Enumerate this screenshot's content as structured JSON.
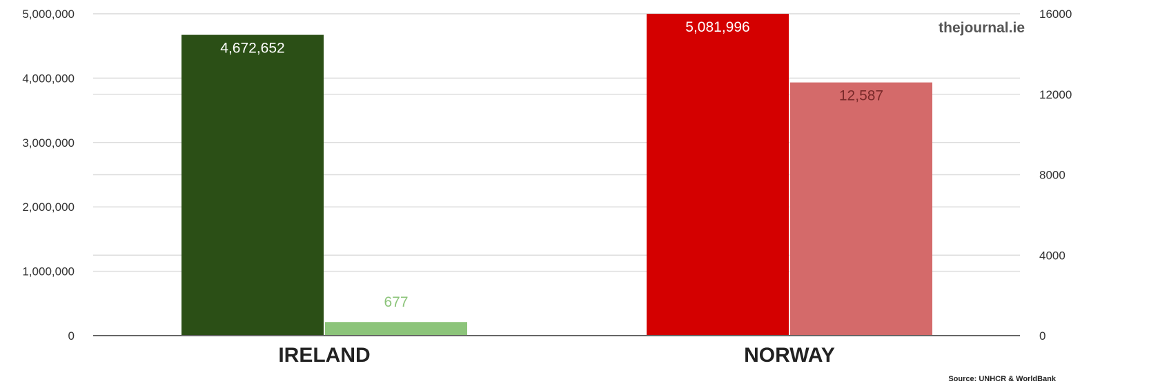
{
  "brand_text": "thejournal.ie",
  "source_text": "Source: UNHCR & WorldBank",
  "chart_data": {
    "type": "bar",
    "categories": [
      "IRELAND",
      "NORWAY"
    ],
    "series": [
      {
        "axis": "left",
        "values": [
          4672652,
          5081996
        ],
        "labels": [
          "4,672,652",
          "5,081,996"
        ],
        "colors": [
          "#2b4f16",
          "#d40000"
        ]
      },
      {
        "axis": "right",
        "values": [
          677,
          12587
        ],
        "labels": [
          "677",
          "12,587"
        ],
        "colors": [
          "#8cc47a",
          "#d46a6a"
        ]
      }
    ],
    "y_left": {
      "ylim": [
        0,
        5000000
      ],
      "ticks": [
        0,
        1000000,
        2000000,
        3000000,
        4000000,
        5000000
      ],
      "tick_labels": [
        "0",
        "1,000,000",
        "2,000,000",
        "3,000,000",
        "4,000,000",
        "5,000,000"
      ]
    },
    "y_right": {
      "ylim": [
        0,
        16000
      ],
      "ticks": [
        0,
        4000,
        8000,
        12000,
        16000
      ],
      "tick_labels": [
        "0",
        "4000",
        "8000",
        "12000",
        "16000"
      ]
    },
    "grid": true,
    "title": "",
    "xlabel": "",
    "ylabel": ""
  }
}
